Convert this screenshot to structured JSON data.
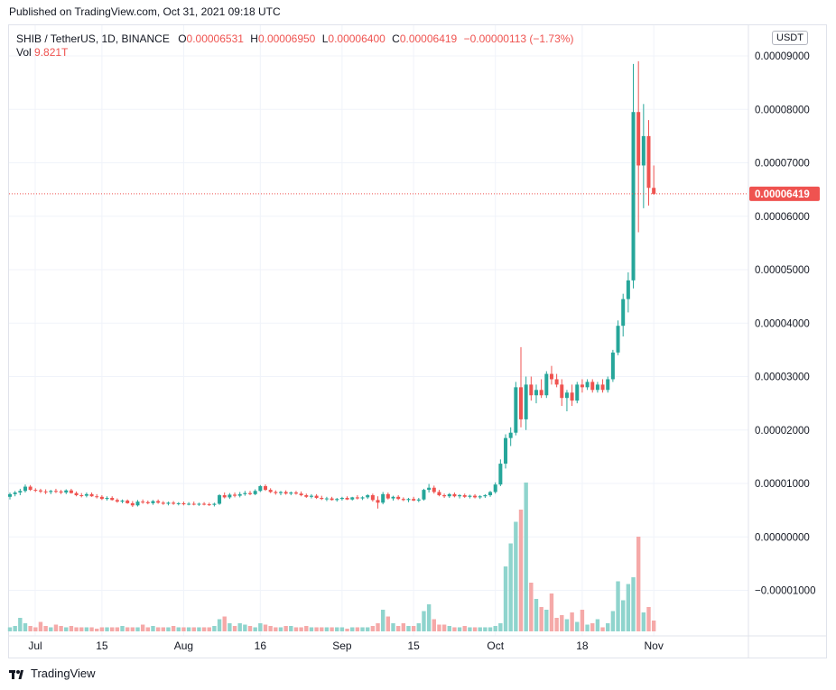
{
  "header": {
    "published": "Published on TradingView.com, Oct 31, 2021 09:18 UTC"
  },
  "legend": {
    "symbol": "SHIB / TetherUS, 1D, BINANCE",
    "o_label": "O",
    "o": "0.00006531",
    "h_label": "H",
    "h": "0.00006950",
    "l_label": "L",
    "l": "0.00006400",
    "c_label": "C",
    "c": "0.00006419",
    "change": "−0.00000113 (−1.73%)",
    "vol_label": "Vol",
    "vol": "9.821T"
  },
  "currency_button": "USDT",
  "footer": {
    "brand": "TradingView"
  },
  "colors": {
    "up": "#26a69a",
    "down": "#ef5350",
    "up_vol": "#8fd4cd",
    "down_vol": "#f5a9a8",
    "grid": "#f0f3fa",
    "text": "#131722",
    "last_price": "#ef5350"
  },
  "chart_data": {
    "type": "candlestick",
    "y_axis": {
      "ticks": [
        "0.00009000",
        "0.00008000",
        "0.00007000",
        "0.00006000",
        "0.00005000",
        "0.00004000",
        "0.00003000",
        "0.00002000",
        "0.00001000",
        "0.00000000",
        "−0.00001000"
      ],
      "tick_values": [
        9e-05,
        8e-05,
        7e-05,
        6e-05,
        5e-05,
        4e-05,
        3e-05,
        2e-05,
        1e-05,
        0.0,
        -1e-05
      ],
      "range": [
        -1.85e-05,
        9.28e-05
      ]
    },
    "x_axis": {
      "tick_labels": [
        "Jul",
        "15",
        "Aug",
        "16",
        "Sep",
        "15",
        "Oct",
        "18",
        "Nov"
      ],
      "tick_indices": [
        4,
        18,
        34,
        49,
        65,
        79,
        95,
        112,
        126
      ]
    },
    "last_price": "0.00006419",
    "grid": true,
    "series": [
      {
        "o": 7.5,
        "h": 8.3,
        "l": 7.0,
        "c": 8.0
      },
      {
        "o": 8.0,
        "h": 8.6,
        "l": 7.6,
        "c": 8.3
      },
      {
        "o": 8.3,
        "h": 9.0,
        "l": 7.8,
        "c": 8.6
      },
      {
        "o": 8.6,
        "h": 9.8,
        "l": 8.3,
        "c": 9.4
      },
      {
        "o": 9.4,
        "h": 9.7,
        "l": 8.6,
        "c": 8.8
      },
      {
        "o": 8.8,
        "h": 9.1,
        "l": 8.4,
        "c": 8.7
      },
      {
        "o": 8.7,
        "h": 9.0,
        "l": 8.2,
        "c": 8.5
      },
      {
        "o": 8.5,
        "h": 8.9,
        "l": 8.0,
        "c": 8.4
      },
      {
        "o": 8.4,
        "h": 8.8,
        "l": 8.0,
        "c": 8.6
      },
      {
        "o": 8.6,
        "h": 9.0,
        "l": 8.2,
        "c": 8.5
      },
      {
        "o": 8.5,
        "h": 8.8,
        "l": 8.0,
        "c": 8.3
      },
      {
        "o": 8.3,
        "h": 8.9,
        "l": 8.0,
        "c": 8.7
      },
      {
        "o": 8.7,
        "h": 9.0,
        "l": 8.1,
        "c": 8.2
      },
      {
        "o": 8.2,
        "h": 8.5,
        "l": 7.6,
        "c": 7.8
      },
      {
        "o": 7.8,
        "h": 8.2,
        "l": 7.4,
        "c": 7.7
      },
      {
        "o": 7.7,
        "h": 8.3,
        "l": 7.4,
        "c": 8.0
      },
      {
        "o": 8.0,
        "h": 8.3,
        "l": 7.5,
        "c": 7.6
      },
      {
        "o": 7.6,
        "h": 8.0,
        "l": 7.2,
        "c": 7.5
      },
      {
        "o": 7.5,
        "h": 7.8,
        "l": 6.9,
        "c": 7.1
      },
      {
        "o": 7.1,
        "h": 7.6,
        "l": 6.8,
        "c": 7.3
      },
      {
        "o": 7.3,
        "h": 7.6,
        "l": 6.8,
        "c": 6.9
      },
      {
        "o": 6.9,
        "h": 7.2,
        "l": 6.4,
        "c": 6.6
      },
      {
        "o": 6.6,
        "h": 7.0,
        "l": 6.3,
        "c": 6.8
      },
      {
        "o": 6.8,
        "h": 7.0,
        "l": 6.2,
        "c": 6.3
      },
      {
        "o": 6.3,
        "h": 6.7,
        "l": 5.6,
        "c": 5.9
      },
      {
        "o": 5.9,
        "h": 6.9,
        "l": 5.7,
        "c": 6.6
      },
      {
        "o": 6.6,
        "h": 7.0,
        "l": 6.2,
        "c": 6.5
      },
      {
        "o": 6.5,
        "h": 6.8,
        "l": 6.1,
        "c": 6.3
      },
      {
        "o": 6.3,
        "h": 6.9,
        "l": 6.0,
        "c": 6.7
      },
      {
        "o": 6.7,
        "h": 7.0,
        "l": 6.2,
        "c": 6.4
      },
      {
        "o": 6.4,
        "h": 6.7,
        "l": 6.0,
        "c": 6.2
      },
      {
        "o": 6.2,
        "h": 6.6,
        "l": 5.9,
        "c": 6.4
      },
      {
        "o": 6.4,
        "h": 6.7,
        "l": 6.0,
        "c": 6.2
      },
      {
        "o": 6.2,
        "h": 6.5,
        "l": 5.9,
        "c": 6.3
      },
      {
        "o": 6.3,
        "h": 6.6,
        "l": 5.9,
        "c": 6.1
      },
      {
        "o": 6.1,
        "h": 6.5,
        "l": 5.9,
        "c": 6.2
      },
      {
        "o": 6.2,
        "h": 6.6,
        "l": 5.9,
        "c": 6.1
      },
      {
        "o": 6.1,
        "h": 6.4,
        "l": 5.8,
        "c": 6.2
      },
      {
        "o": 6.2,
        "h": 6.5,
        "l": 5.9,
        "c": 6.1
      },
      {
        "o": 6.1,
        "h": 6.4,
        "l": 5.8,
        "c": 6.0
      },
      {
        "o": 6.0,
        "h": 6.4,
        "l": 5.7,
        "c": 6.2
      },
      {
        "o": 6.2,
        "h": 8.0,
        "l": 6.0,
        "c": 7.8
      },
      {
        "o": 7.8,
        "h": 8.3,
        "l": 7.2,
        "c": 7.4
      },
      {
        "o": 7.4,
        "h": 8.2,
        "l": 7.1,
        "c": 7.9
      },
      {
        "o": 7.9,
        "h": 8.3,
        "l": 7.4,
        "c": 7.7
      },
      {
        "o": 7.7,
        "h": 8.4,
        "l": 7.4,
        "c": 8.0
      },
      {
        "o": 8.0,
        "h": 8.6,
        "l": 7.7,
        "c": 8.2
      },
      {
        "o": 8.2,
        "h": 8.6,
        "l": 7.8,
        "c": 8.0
      },
      {
        "o": 8.0,
        "h": 8.9,
        "l": 7.8,
        "c": 8.6
      },
      {
        "o": 8.6,
        "h": 9.7,
        "l": 8.4,
        "c": 9.5
      },
      {
        "o": 9.5,
        "h": 9.8,
        "l": 8.6,
        "c": 8.8
      },
      {
        "o": 8.8,
        "h": 9.1,
        "l": 8.2,
        "c": 8.4
      },
      {
        "o": 8.4,
        "h": 8.7,
        "l": 7.9,
        "c": 8.2
      },
      {
        "o": 8.2,
        "h": 8.6,
        "l": 7.8,
        "c": 8.4
      },
      {
        "o": 8.4,
        "h": 8.7,
        "l": 7.9,
        "c": 8.1
      },
      {
        "o": 8.1,
        "h": 8.5,
        "l": 7.8,
        "c": 8.3
      },
      {
        "o": 8.3,
        "h": 8.6,
        "l": 7.9,
        "c": 8.1
      },
      {
        "o": 8.1,
        "h": 8.5,
        "l": 7.6,
        "c": 7.8
      },
      {
        "o": 7.8,
        "h": 8.1,
        "l": 7.3,
        "c": 7.5
      },
      {
        "o": 7.5,
        "h": 8.0,
        "l": 7.2,
        "c": 7.7
      },
      {
        "o": 7.7,
        "h": 8.0,
        "l": 7.1,
        "c": 7.3
      },
      {
        "o": 7.3,
        "h": 7.7,
        "l": 6.9,
        "c": 7.1
      },
      {
        "o": 7.1,
        "h": 7.5,
        "l": 6.7,
        "c": 7.2
      },
      {
        "o": 7.2,
        "h": 7.5,
        "l": 6.8,
        "c": 6.9
      },
      {
        "o": 6.9,
        "h": 7.3,
        "l": 6.6,
        "c": 7.1
      },
      {
        "o": 7.1,
        "h": 7.5,
        "l": 6.8,
        "c": 7.3
      },
      {
        "o": 7.3,
        "h": 7.6,
        "l": 6.9,
        "c": 7.0
      },
      {
        "o": 7.0,
        "h": 7.5,
        "l": 6.8,
        "c": 7.4
      },
      {
        "o": 7.4,
        "h": 7.8,
        "l": 7.0,
        "c": 7.2
      },
      {
        "o": 7.2,
        "h": 7.6,
        "l": 6.9,
        "c": 7.4
      },
      {
        "o": 7.4,
        "h": 8.0,
        "l": 7.1,
        "c": 7.8
      },
      {
        "o": 7.8,
        "h": 8.1,
        "l": 6.6,
        "c": 6.9
      },
      {
        "o": 6.9,
        "h": 7.6,
        "l": 5.3,
        "c": 6.4
      },
      {
        "o": 6.4,
        "h": 8.4,
        "l": 6.1,
        "c": 8.0
      },
      {
        "o": 8.0,
        "h": 8.3,
        "l": 7.0,
        "c": 7.2
      },
      {
        "o": 7.2,
        "h": 7.7,
        "l": 6.8,
        "c": 7.5
      },
      {
        "o": 7.5,
        "h": 7.8,
        "l": 6.9,
        "c": 7.1
      },
      {
        "o": 7.1,
        "h": 7.4,
        "l": 6.7,
        "c": 6.9
      },
      {
        "o": 6.9,
        "h": 7.3,
        "l": 6.5,
        "c": 7.1
      },
      {
        "o": 7.1,
        "h": 7.5,
        "l": 6.7,
        "c": 6.8
      },
      {
        "o": 6.8,
        "h": 7.3,
        "l": 6.5,
        "c": 7.0
      },
      {
        "o": 7.0,
        "h": 9.0,
        "l": 6.8,
        "c": 8.8
      },
      {
        "o": 8.8,
        "h": 9.9,
        "l": 8.3,
        "c": 9.2
      },
      {
        "o": 9.2,
        "h": 9.6,
        "l": 8.1,
        "c": 8.4
      },
      {
        "o": 8.4,
        "h": 8.8,
        "l": 7.6,
        "c": 7.8
      },
      {
        "o": 7.8,
        "h": 8.1,
        "l": 7.3,
        "c": 7.6
      },
      {
        "o": 7.6,
        "h": 8.2,
        "l": 7.3,
        "c": 8.0
      },
      {
        "o": 8.0,
        "h": 8.3,
        "l": 7.4,
        "c": 7.6
      },
      {
        "o": 7.6,
        "h": 8.0,
        "l": 7.2,
        "c": 7.8
      },
      {
        "o": 7.8,
        "h": 8.1,
        "l": 7.3,
        "c": 7.5
      },
      {
        "o": 7.5,
        "h": 7.9,
        "l": 7.2,
        "c": 7.7
      },
      {
        "o": 7.7,
        "h": 8.0,
        "l": 7.2,
        "c": 7.4
      },
      {
        "o": 7.4,
        "h": 7.8,
        "l": 7.1,
        "c": 7.6
      },
      {
        "o": 7.6,
        "h": 8.0,
        "l": 7.3,
        "c": 7.8
      },
      {
        "o": 7.8,
        "h": 8.6,
        "l": 7.5,
        "c": 8.4
      },
      {
        "o": 8.4,
        "h": 10.2,
        "l": 8.1,
        "c": 9.8
      },
      {
        "o": 9.8,
        "h": 14.5,
        "l": 9.5,
        "c": 13.7
      },
      {
        "o": 13.7,
        "h": 19.2,
        "l": 12.8,
        "c": 18.5
      },
      {
        "o": 18.5,
        "h": 20.5,
        "l": 17.0,
        "c": 19.5
      },
      {
        "o": 19.5,
        "h": 29.0,
        "l": 19.0,
        "c": 28.0
      },
      {
        "o": 28.0,
        "h": 35.5,
        "l": 20.5,
        "c": 22.0
      },
      {
        "o": 22.0,
        "h": 30.0,
        "l": 20.0,
        "c": 28.5
      },
      {
        "o": 28.5,
        "h": 30.0,
        "l": 25.5,
        "c": 26.5
      },
      {
        "o": 26.5,
        "h": 28.5,
        "l": 25.0,
        "c": 27.5
      },
      {
        "o": 27.5,
        "h": 29.5,
        "l": 26.0,
        "c": 26.5
      },
      {
        "o": 26.5,
        "h": 31.0,
        "l": 26.0,
        "c": 30.5
      },
      {
        "o": 30.5,
        "h": 32.0,
        "l": 28.5,
        "c": 29.5
      },
      {
        "o": 29.5,
        "h": 30.5,
        "l": 28.0,
        "c": 28.5
      },
      {
        "o": 28.5,
        "h": 29.5,
        "l": 24.5,
        "c": 26.0
      },
      {
        "o": 26.0,
        "h": 27.5,
        "l": 23.5,
        "c": 27.0
      },
      {
        "o": 27.0,
        "h": 28.5,
        "l": 24.5,
        "c": 25.5
      },
      {
        "o": 25.5,
        "h": 29.0,
        "l": 25.0,
        "c": 28.5
      },
      {
        "o": 28.5,
        "h": 29.5,
        "l": 27.0,
        "c": 28.0
      },
      {
        "o": 28.0,
        "h": 29.5,
        "l": 27.5,
        "c": 29.0
      },
      {
        "o": 29.0,
        "h": 29.5,
        "l": 27.0,
        "c": 27.5
      },
      {
        "o": 27.5,
        "h": 29.0,
        "l": 27.0,
        "c": 28.5
      },
      {
        "o": 28.5,
        "h": 29.5,
        "l": 27.0,
        "c": 27.5
      },
      {
        "o": 27.5,
        "h": 30.0,
        "l": 27.0,
        "c": 29.5
      },
      {
        "o": 29.5,
        "h": 35.0,
        "l": 29.0,
        "c": 34.5
      },
      {
        "o": 34.5,
        "h": 40.5,
        "l": 34.0,
        "c": 39.5
      },
      {
        "o": 39.5,
        "h": 45.5,
        "l": 37.5,
        "c": 44.5
      },
      {
        "o": 44.5,
        "h": 49.5,
        "l": 42.0,
        "c": 48.0
      },
      {
        "o": 48.0,
        "h": 88.5,
        "l": 46.5,
        "c": 79.5
      },
      {
        "o": 79.5,
        "h": 89.0,
        "l": 57.0,
        "c": 69.5
      },
      {
        "o": 69.5,
        "h": 81.0,
        "l": 61.5,
        "c": 75.0
      },
      {
        "o": 75.0,
        "h": 78.0,
        "l": 62.0,
        "c": 65.31
      },
      {
        "o": 65.31,
        "h": 69.5,
        "l": 64.0,
        "c": 64.19
      }
    ],
    "volume": [
      3,
      4,
      10,
      6,
      4,
      3,
      7,
      4,
      3,
      5,
      4,
      3,
      4,
      3,
      3,
      3,
      3,
      2,
      3,
      3,
      3,
      3,
      4,
      3,
      3,
      3,
      5,
      3,
      4,
      3,
      3,
      3,
      4,
      3,
      3,
      3,
      3,
      3,
      3,
      3,
      4,
      9,
      11,
      6,
      4,
      6,
      5,
      4,
      3,
      6,
      5,
      4,
      3,
      3,
      4,
      4,
      3,
      3,
      4,
      3,
      3,
      3,
      3,
      3,
      3,
      3,
      2,
      3,
      3,
      3,
      3,
      4,
      6,
      16,
      11,
      6,
      4,
      6,
      4,
      4,
      6,
      15,
      20,
      9,
      5,
      5,
      4,
      3,
      3,
      4,
      3,
      3,
      3,
      3,
      3,
      4,
      6,
      48,
      65,
      81,
      90,
      110,
      36,
      24,
      18,
      16,
      28,
      10,
      12,
      9,
      14,
      7,
      16,
      5,
      6,
      9,
      3,
      6,
      15,
      37,
      23,
      35,
      40,
      70,
      14,
      18,
      8,
      5,
      3
    ]
  }
}
